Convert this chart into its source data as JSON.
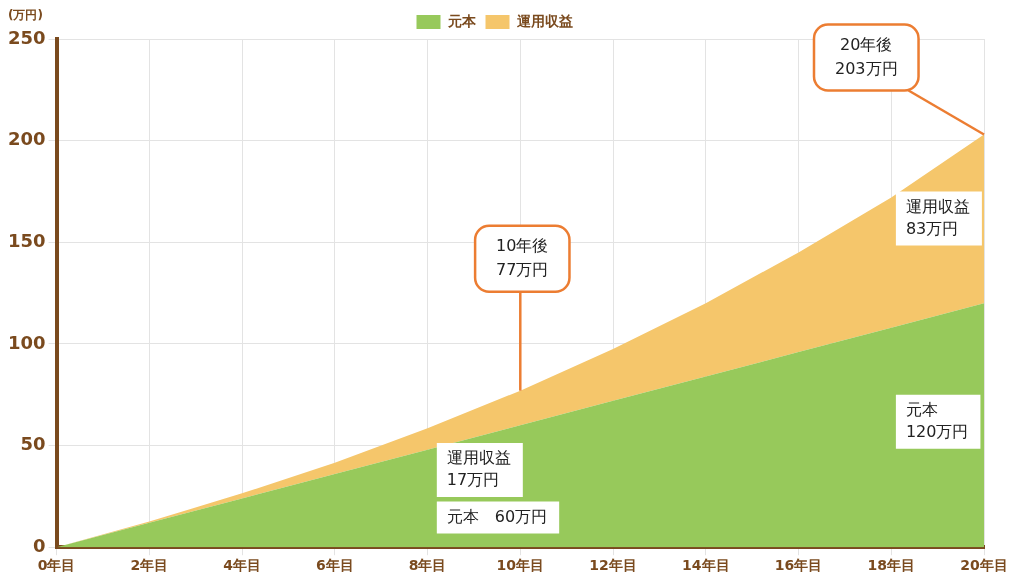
{
  "chart_data": {
    "type": "area",
    "stacked": true,
    "ylabel": "(万円)",
    "categories": [
      "0年目",
      "2年目",
      "4年目",
      "6年目",
      "8年目",
      "10年目",
      "12年目",
      "14年目",
      "16年目",
      "18年目",
      "20年目"
    ],
    "series": [
      {
        "name": "元本",
        "color": "#97c95b",
        "values": [
          0,
          12,
          24,
          36,
          48,
          60,
          72,
          84,
          96,
          108,
          120
        ]
      },
      {
        "name": "運用収益",
        "color": "#f5c66b",
        "values": [
          0,
          0.6,
          2.5,
          5.5,
          10.5,
          17,
          25.5,
          36,
          49,
          64,
          83
        ]
      }
    ],
    "ylim": [
      0,
      250
    ],
    "yticks": [
      0,
      50,
      100,
      150,
      200,
      250
    ],
    "grid": true,
    "legend": "top",
    "annotations": [
      {
        "text": "10年後\n77万円",
        "x": "10年目",
        "y": 77
      },
      {
        "text": "20年後\n203万円",
        "x": "20年目",
        "y": 203
      },
      "運用収益\n17万円",
      "元本　60万円",
      "運用収益\n83万円",
      "元本\n120万円"
    ]
  }
}
